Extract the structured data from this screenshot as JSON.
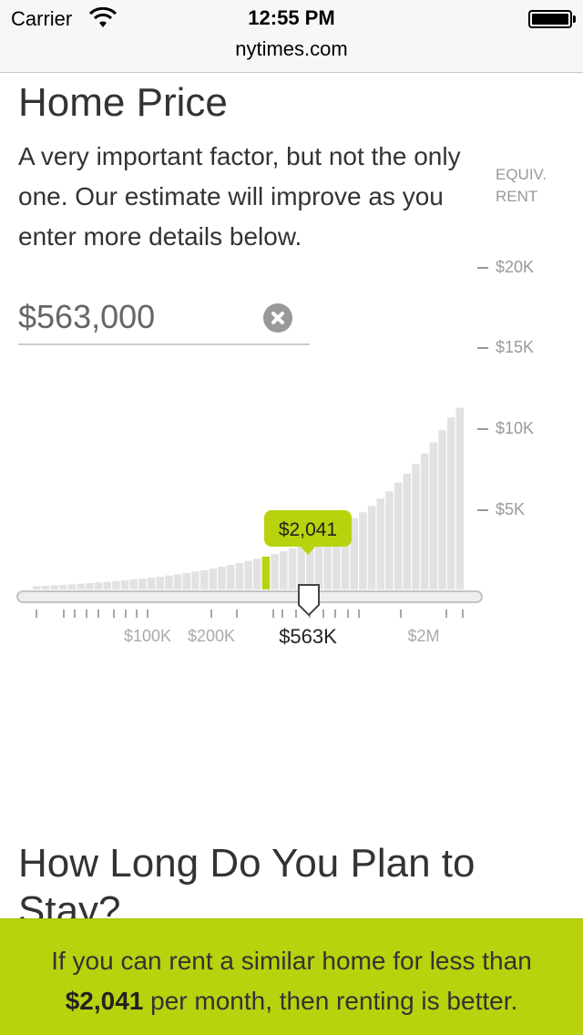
{
  "status_bar": {
    "carrier": "Carrier",
    "time": "12:55 PM",
    "url": "nytimes.com"
  },
  "section_home_price": {
    "title": "Home Price",
    "description": "A very important factor, but not the only one. Our estimate will improve as you enter more details below.",
    "input_value": "$563,000",
    "equiv_label_line1": "EQUIV.",
    "equiv_label_line2": "RENT"
  },
  "chart_data": {
    "type": "bar",
    "y_ticks": [
      "$20K",
      "$15K",
      "$10K",
      "$5K"
    ],
    "y_tick_values": [
      20000,
      15000,
      10000,
      5000
    ],
    "ylim": [
      0,
      20000
    ],
    "x_tick_labels": [
      "$100K",
      "$200K",
      "$563K",
      "$2M"
    ],
    "selected_value_label": "$2,041",
    "selected_price_label": "$563K",
    "selected_index": 26,
    "values": [
      200,
      230,
      260,
      290,
      320,
      360,
      400,
      440,
      480,
      520,
      570,
      620,
      680,
      740,
      800,
      870,
      940,
      1020,
      1110,
      1200,
      1300,
      1410,
      1530,
      1650,
      1780,
      1910,
      2041,
      2200,
      2380,
      2570,
      2780,
      3000,
      3250,
      3500,
      3800,
      4100,
      4450,
      4800,
      5200,
      5650,
      6100,
      6650,
      7200,
      7800,
      8450,
      9150,
      9900,
      10700,
      11300
    ],
    "highlight_color": "#b8d20e",
    "bar_color": "#e2e2e2"
  },
  "section_stay": {
    "title": "How Long Do You Plan to Stay?"
  },
  "bottom_bar": {
    "text_before": "If you can rent a similar home for less than",
    "amount": "$2,041",
    "text_after": "per month, then renting is better.",
    "color": "#b8d20e"
  }
}
